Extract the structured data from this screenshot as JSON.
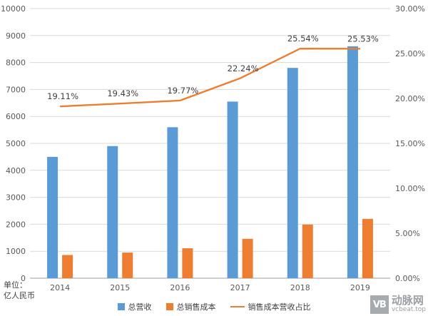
{
  "chart_data": {
    "type": "combo-bar-line",
    "categories": [
      "2014",
      "2015",
      "2016",
      "2017",
      "2018",
      "2019"
    ],
    "series": [
      {
        "name": "总营收",
        "type": "bar",
        "axis": "left",
        "color": "#5B9BD5",
        "values": [
          4500,
          4900,
          5600,
          6550,
          7800,
          8600
        ]
      },
      {
        "name": "总销售成本",
        "type": "bar",
        "axis": "left",
        "color": "#ED7D31",
        "values": [
          860,
          950,
          1110,
          1460,
          1990,
          2200
        ]
      },
      {
        "name": "销售成本营收占比",
        "type": "line",
        "axis": "right",
        "color": "#ED7D31",
        "values": [
          19.11,
          19.43,
          19.77,
          22.24,
          25.54,
          25.53
        ],
        "labels": [
          "19.11%",
          "19.43%",
          "19.77%",
          "22.24%",
          "25.54%",
          "25.53%"
        ]
      }
    ],
    "left_axis": {
      "min": 0,
      "max": 10000,
      "step": 1000,
      "ticks": [
        "0",
        "1000",
        "2000",
        "3000",
        "4000",
        "5000",
        "6000",
        "7000",
        "8000",
        "9000",
        "10000"
      ]
    },
    "right_axis": {
      "min": 0,
      "max": 30,
      "step": 5,
      "ticks": [
        "0.00%",
        "5.00%",
        "10.00%",
        "15.00%",
        "20.00%",
        "25.00%",
        "30.00%"
      ]
    },
    "grid": true,
    "unit_label": {
      "line1": "单位：",
      "line2": "亿人民币"
    }
  },
  "legend": {
    "items": [
      {
        "label": "总营收",
        "color": "#5B9BD5",
        "marker": "square"
      },
      {
        "label": "总销售成本",
        "color": "#ED7D31",
        "marker": "square"
      },
      {
        "label": "销售成本营收占比",
        "color": "#ED7D31",
        "marker": "line"
      }
    ]
  },
  "watermark": {
    "logo": "VB",
    "name": "动脉网",
    "site": "vcbeat.top"
  }
}
